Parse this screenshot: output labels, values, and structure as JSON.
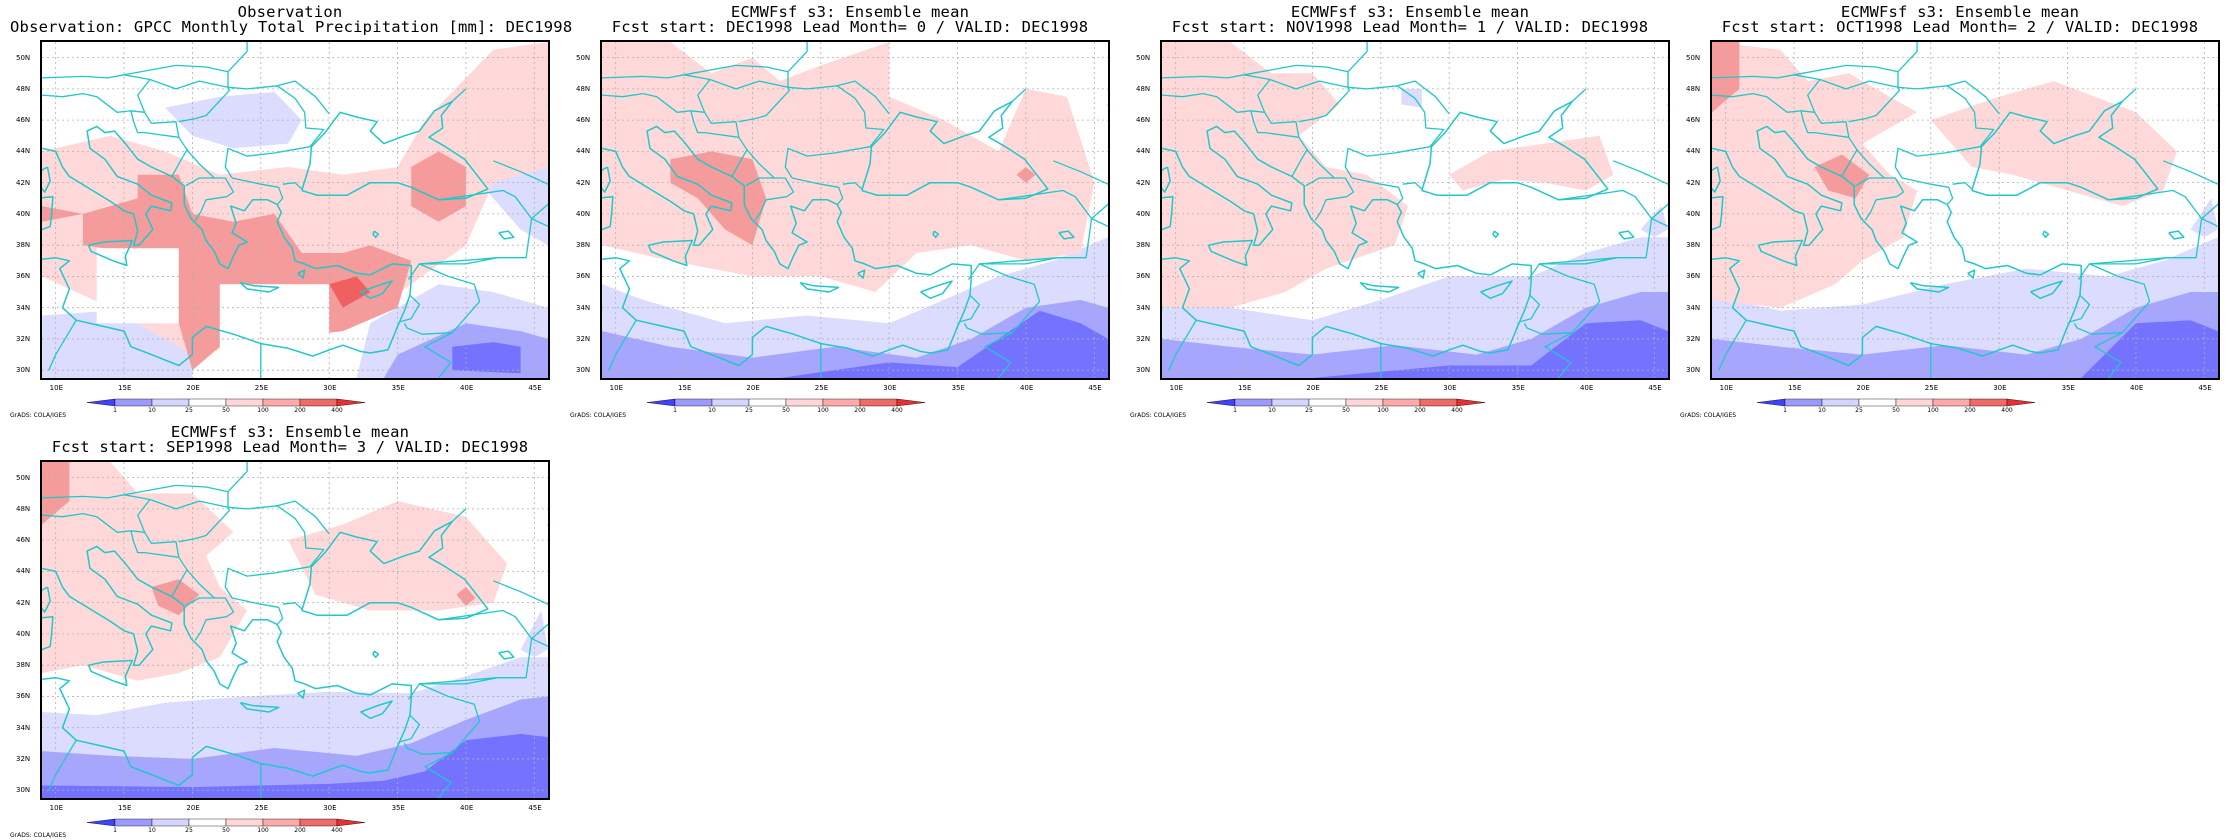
{
  "panels": [
    {
      "title1": "Observation",
      "title2": "Observation: GPCC Monthly Total Precipitation [mm]: DEC1998"
    },
    {
      "title1": "ECMWFsf s3: Ensemble mean",
      "title2": "Fcst start: DEC1998  Lead Month= 0 / VALID: DEC1998"
    },
    {
      "title1": "ECMWFsf s3: Ensemble mean",
      "title2": "Fcst start: NOV1998  Lead Month= 1 / VALID: DEC1998"
    },
    {
      "title1": "ECMWFsf s3: Ensemble mean",
      "title2": "Fcst start: OCT1998  Lead Month= 2 / VALID: DEC1998"
    },
    {
      "title1": "ECMWFsf s3: Ensemble mean",
      "title2": "Fcst start: SEP1998  Lead Month= 3 / VALID: DEC1998"
    }
  ],
  "axes": {
    "lat_labels": [
      "50N",
      "48N",
      "46N",
      "44N",
      "42N",
      "40N",
      "38N",
      "36N",
      "34N",
      "32N",
      "30N"
    ],
    "lon_labels": [
      "10E",
      "15E",
      "20E",
      "25E",
      "30E",
      "35E",
      "40E",
      "45E"
    ]
  },
  "colorbar": {
    "levels": [
      "1",
      "10",
      "25",
      "50",
      "100",
      "200",
      "400"
    ],
    "colors": [
      "#4040ff",
      "#9b9bff",
      "#d4d4ff",
      "#ffffff",
      "#ffd7d7",
      "#ffaaaa",
      "#f06a6a",
      "#e83030"
    ]
  },
  "credit": "GrADS: COLA/IGES",
  "colors": {
    "coast": "#21c7c9",
    "grid": "#b0b0b0",
    "blue_light": "#dcdcff",
    "blue_mid": "#a6a6ff",
    "blue_dark": "#7373ff",
    "red_light": "#ffd9d9",
    "red_mid": "#f59b9b",
    "red_dark": "#f06060"
  }
}
